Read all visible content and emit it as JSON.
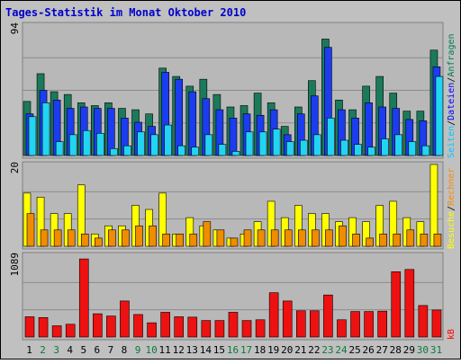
{
  "chart_data": {
    "type": "bar",
    "title": "Tages-Statistik im Monat Oktober 2010",
    "categories": [
      "1",
      "2",
      "3",
      "4",
      "5",
      "6",
      "7",
      "8",
      "9",
      "10",
      "11",
      "12",
      "13",
      "14",
      "15",
      "16",
      "17",
      "18",
      "19",
      "20",
      "21",
      "22",
      "23",
      "24",
      "25",
      "26",
      "27",
      "28",
      "29",
      "30",
      "31"
    ],
    "weekend_days": [
      "2",
      "3",
      "9",
      "10",
      "16",
      "17",
      "23",
      "24",
      "30",
      "31"
    ],
    "panels": [
      {
        "id": "top",
        "ymax_label": "94",
        "ylim": [
          0,
          94
        ],
        "side_label": [
          "Seiten",
          "/",
          "Dateien",
          "/",
          "Anfragen"
        ],
        "series": [
          {
            "name": "Anfragen",
            "color": "#1b7a5a",
            "values": [
              39,
              59,
              46,
              44,
              38,
              36,
              38,
              34,
              33,
              30,
              63,
              57,
              50,
              55,
              44,
              35,
              36,
              45,
              38,
              21,
              35,
              54,
              84,
              40,
              33,
              50,
              57,
              45,
              32,
              32,
              76
            ]
          },
          {
            "name": "Dateien",
            "color": "#1c3cf0",
            "values": [
              30,
              47,
              40,
              34,
              35,
              34,
              34,
              27,
              24,
              21,
              60,
              55,
              46,
              41,
              33,
              27,
              30,
              29,
              33,
              15,
              30,
              43,
              78,
              33,
              27,
              38,
              35,
              34,
              26,
              25,
              64
            ]
          },
          {
            "name": "Seiten",
            "color": "#22d4f2",
            "values": [
              28,
              38,
              10,
              15,
              18,
              16,
              5,
              7,
              17,
              15,
              22,
              7,
              6,
              15,
              8,
              3,
              17,
              17,
              19,
              10,
              11,
              15,
              27,
              11,
              8,
              6,
              12,
              15,
              10,
              7,
              57
            ]
          }
        ]
      },
      {
        "id": "middle",
        "ymax_label": "20",
        "ylim": [
          0,
          20
        ],
        "side_label": [
          "Besuche",
          "/",
          "Rechner"
        ],
        "series": [
          {
            "name": "Besuche",
            "color": "#ffff00",
            "values": [
              13,
              12,
              8,
              8,
              15,
              3,
              5,
              5,
              10,
              9,
              13,
              3,
              7,
              5,
              4,
              2,
              3,
              6,
              11,
              7,
              10,
              8,
              8,
              6,
              7,
              6,
              10,
              11,
              7,
              6,
              20
            ]
          },
          {
            "name": "Rechner",
            "color": "#f08c00",
            "values": [
              8,
              4,
              4,
              4,
              3,
              2,
              4,
              4,
              5,
              5,
              3,
              3,
              3,
              6,
              4,
              2,
              4,
              4,
              4,
              4,
              4,
              4,
              4,
              5,
              3,
              2,
              3,
              3,
              4,
              3,
              3
            ]
          }
        ]
      },
      {
        "id": "bottom",
        "ymax_label": "1089",
        "ylim": [
          0,
          1089
        ],
        "side_label": [
          "kB"
        ],
        "series": [
          {
            "name": "kB",
            "color": "#ee1111",
            "values": [
              270,
              260,
              150,
              170,
              1040,
              310,
              280,
              480,
              300,
              190,
              330,
              270,
              265,
              220,
              220,
              330,
              220,
              230,
              590,
              480,
              350,
              350,
              560,
              230,
              340,
              340,
              345,
              870,
              900,
              420,
              360
            ]
          }
        ]
      }
    ]
  }
}
